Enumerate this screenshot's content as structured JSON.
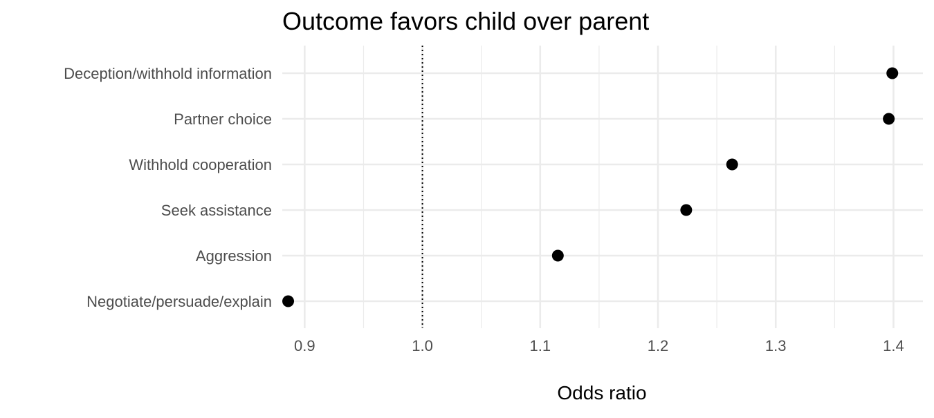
{
  "chart_data": {
    "type": "scatter",
    "title": "Outcome favors child over parent",
    "xlabel": "Odds ratio",
    "ylabel": "",
    "xlim": [
      0.881,
      1.425
    ],
    "x_ticks": [
      "0.9",
      "1.0",
      "1.1",
      "1.2",
      "1.3",
      "1.4"
    ],
    "x_tick_values": [
      0.9,
      1.0,
      1.1,
      1.2,
      1.3,
      1.4
    ],
    "x_minor_ticks": [
      0.95,
      1.05,
      1.15,
      1.25,
      1.35
    ],
    "reference_line": 1.0,
    "categories": [
      "Deception/withhold information",
      "Partner choice",
      "Withhold cooperation",
      "Seek assistance",
      "Aggression",
      "Negotiate/persuade/explain"
    ],
    "values": [
      1.399,
      1.396,
      1.263,
      1.224,
      1.115,
      0.886
    ],
    "grid": true,
    "legend": "none",
    "point_color": "#000000",
    "grid_color": "#ebebeb",
    "text_color": "#4d4d4d"
  }
}
